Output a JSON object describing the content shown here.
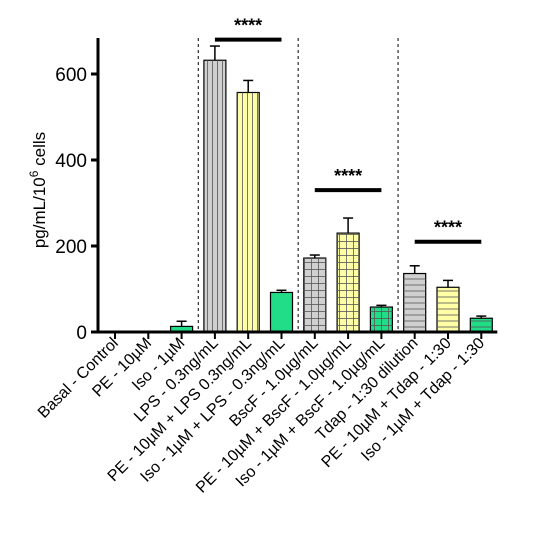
{
  "chart_data": {
    "type": "bar",
    "ylabel_main": "pg/mL/10",
    "ylabel_exp": "6",
    "ylabel_tail": " cells",
    "xlabel": "",
    "ylim": [
      0,
      680
    ],
    "yticks": [
      0,
      200,
      400,
      600
    ],
    "categories": [
      "Basal - Control",
      "PE - 10µM",
      "Iso - 1µM",
      "LPS - 0.3ng/mL",
      "PE - 10µM + LPS 0.3ng/mL",
      "Iso - 1µM + LPS - 0.3ng/mL",
      "BscF - 1.0µg/mL",
      "PE - 10µM + BscF - 1.0µg/mL",
      "Iso - 1µM + BscF - 1.0µg/mL",
      "Tdap - 1:30 dilution",
      "PE - 10µM + Tdap - 1:30",
      "Iso - 1µM + Tdap - 1:30"
    ],
    "values": [
      0,
      0,
      13,
      632,
      557,
      92,
      172,
      230,
      58,
      136,
      104,
      32
    ],
    "errors": [
      0,
      0,
      12,
      33,
      28,
      5,
      7,
      35,
      4,
      18,
      16,
      5
    ],
    "fills": [
      "#d0d0d0",
      "#ffffa8",
      "#22dd88",
      "#d0d0d0",
      "#ffffa8",
      "#22dd88",
      "#d0d0d0",
      "#ffffa8",
      "#22dd88",
      "#d0d0d0",
      "#ffffa8",
      "#22dd88"
    ],
    "patterns": [
      "v",
      "v",
      "none",
      "v",
      "v",
      "none",
      "grid",
      "grid",
      "grid",
      "h",
      "h",
      "h"
    ],
    "group_separators_after": [
      2,
      5,
      8
    ],
    "significance": [
      {
        "label": "****",
        "from": 3,
        "to": 5,
        "y": 680
      },
      {
        "label": "****",
        "from": 6,
        "to": 8,
        "y": 330
      },
      {
        "label": "****",
        "from": 9,
        "to": 11,
        "y": 210
      }
    ],
    "grid": false
  }
}
